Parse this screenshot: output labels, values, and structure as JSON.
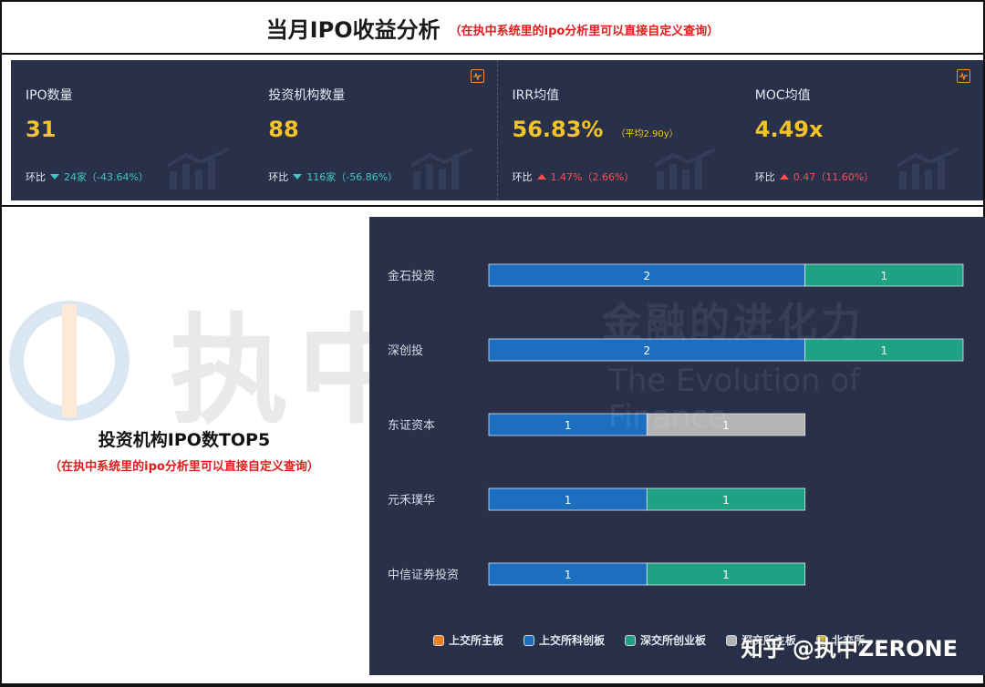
{
  "header": {
    "title": "当月IPO收益分析",
    "note": "（在执中系统里的ipo分析里可以直接自定义查询）"
  },
  "kpis": [
    {
      "label": "IPO数量",
      "value": "31",
      "sub": "",
      "chg_label": "环比",
      "chg_dir": "down",
      "chg_text": "24家（-43.64%）"
    },
    {
      "label": "投资机构数量",
      "value": "88",
      "sub": "",
      "chg_label": "环比",
      "chg_dir": "down",
      "chg_text": "116家（-56.86%）"
    },
    {
      "label": "IRR均值",
      "value": "56.83%",
      "sub": "（平均2.90y）",
      "chg_label": "环比",
      "chg_dir": "up",
      "chg_text": "1.47%（2.66%）"
    },
    {
      "label": "MOC均值",
      "value": "4.49x",
      "sub": "",
      "chg_label": "环比",
      "chg_dir": "up",
      "chg_text": "0.47（11.60%）"
    }
  ],
  "caption": {
    "title": "投资机构IPO数TOP5",
    "note": "（在执中系统里的ipo分析里可以直接自定义查询）"
  },
  "watermark": {
    "brand": "执中",
    "slogan": "金融的进化力",
    "slogan_en": "The Evolution of Finance",
    "zhihu": "知乎 @执中ZERONE"
  },
  "colors": {
    "panel_bg": "#28304a",
    "accent_value": "#f3c328",
    "down": "#3fc7c1",
    "up": "#ff4d4f"
  },
  "chart_data": {
    "type": "bar",
    "orientation": "horizontal",
    "stacked": true,
    "categories": [
      "金石投资",
      "深创投",
      "东证资本",
      "元禾璞华",
      "中信证券投资"
    ],
    "series": [
      {
        "name": "上交所主板",
        "color": "#f07f1d",
        "values": [
          0,
          0,
          0,
          0,
          0
        ]
      },
      {
        "name": "上交所科创板",
        "color": "#1c6fbe",
        "values": [
          2,
          2,
          1,
          1,
          1
        ]
      },
      {
        "name": "深交所创业板",
        "color": "#1fa284",
        "values": [
          1,
          1,
          0,
          1,
          1
        ]
      },
      {
        "name": "深交所主板",
        "color": "#b4b4b4",
        "values": [
          0,
          0,
          1,
          0,
          0
        ]
      },
      {
        "name": "北交所",
        "color": "#e8c13a",
        "values": [
          0,
          0,
          0,
          0,
          0
        ]
      }
    ],
    "xlim": [
      0,
      3
    ],
    "legend": "bottom"
  }
}
